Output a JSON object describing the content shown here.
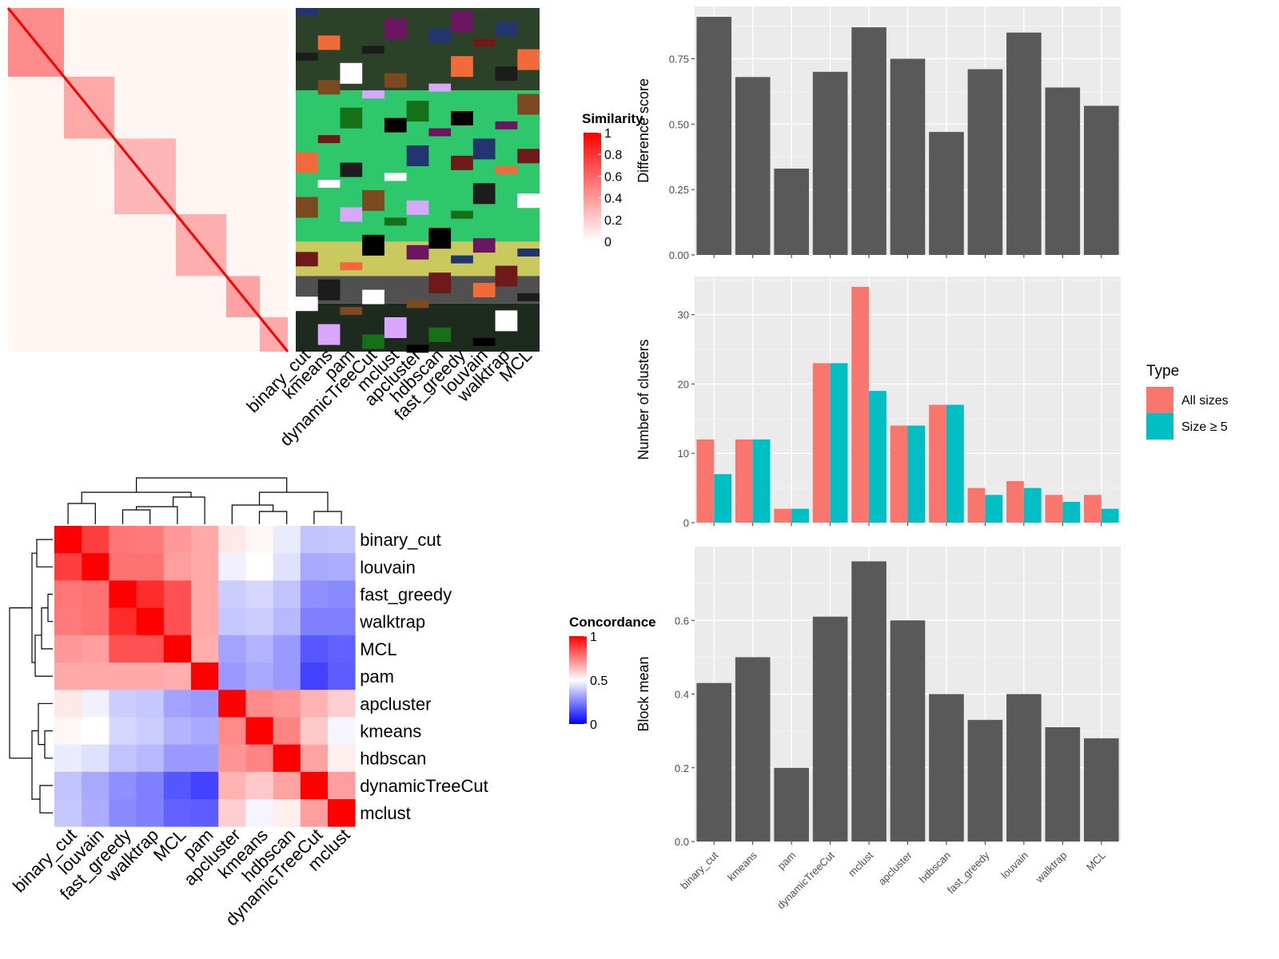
{
  "chart_data": [
    {
      "type": "heatmap",
      "name": "similarity-matrix",
      "legend_title": "Similarity",
      "legend_ticks": [
        "1",
        "0.8",
        "0.6",
        "0.4",
        "0.2",
        "0"
      ],
      "colors": {
        "low": "#ffffff",
        "high": "#ff0000"
      },
      "column_labels": [
        "binary_cut",
        "kmeans",
        "pam",
        "dynamicTreeCut",
        "mclust",
        "apcluster",
        "hdbscan",
        "fast_greedy",
        "louvain",
        "walktrap",
        "MCL"
      ]
    },
    {
      "type": "heatmap",
      "name": "concordance-matrix",
      "legend_title": "Concordance",
      "legend_ticks": [
        "1",
        "0.5",
        "0"
      ],
      "colors": {
        "low": "#0000ff",
        "mid": "#ffffff",
        "high": "#ff0000"
      },
      "labels": [
        "binary_cut",
        "louvain",
        "fast_greedy",
        "walktrap",
        "MCL",
        "pam",
        "apcluster",
        "kmeans",
        "hdbscan",
        "dynamicTreeCut",
        "mclust"
      ],
      "values": [
        [
          1.0,
          0.86,
          0.74,
          0.73,
          0.67,
          0.64,
          0.53,
          0.51,
          0.46,
          0.38,
          0.39
        ],
        [
          0.86,
          1.0,
          0.75,
          0.75,
          0.66,
          0.64,
          0.47,
          0.5,
          0.44,
          0.33,
          0.34
        ],
        [
          0.74,
          0.75,
          1.0,
          0.9,
          0.82,
          0.64,
          0.4,
          0.42,
          0.38,
          0.28,
          0.27
        ],
        [
          0.73,
          0.75,
          0.9,
          1.0,
          0.82,
          0.64,
          0.39,
          0.4,
          0.36,
          0.25,
          0.25
        ],
        [
          0.67,
          0.66,
          0.82,
          0.82,
          1.0,
          0.63,
          0.32,
          0.35,
          0.3,
          0.17,
          0.19
        ],
        [
          0.64,
          0.64,
          0.64,
          0.64,
          0.63,
          1.0,
          0.3,
          0.33,
          0.3,
          0.13,
          0.18
        ],
        [
          0.53,
          0.47,
          0.4,
          0.39,
          0.32,
          0.3,
          1.0,
          0.7,
          0.68,
          0.62,
          0.57
        ],
        [
          0.51,
          0.5,
          0.42,
          0.4,
          0.35,
          0.33,
          0.7,
          1.0,
          0.71,
          0.58,
          0.48
        ],
        [
          0.46,
          0.44,
          0.38,
          0.36,
          0.3,
          0.3,
          0.68,
          0.71,
          1.0,
          0.65,
          0.52
        ],
        [
          0.38,
          0.33,
          0.28,
          0.25,
          0.17,
          0.13,
          0.62,
          0.58,
          0.65,
          1.0,
          0.66
        ],
        [
          0.39,
          0.34,
          0.27,
          0.25,
          0.19,
          0.18,
          0.57,
          0.48,
          0.52,
          0.66,
          1.0
        ]
      ]
    },
    {
      "type": "bar",
      "name": "difference-score",
      "categories": [
        "binary_cut",
        "kmeans",
        "pam",
        "dynamicTreeCut",
        "mclust",
        "apcluster",
        "hdbscan",
        "fast_greedy",
        "louvain",
        "walktrap",
        "MCL"
      ],
      "values": [
        0.91,
        0.68,
        0.33,
        0.7,
        0.87,
        0.75,
        0.47,
        0.71,
        0.85,
        0.64,
        0.57
      ],
      "ylabel": "Difference score",
      "ylim": [
        0,
        0.95
      ],
      "yticks": [
        0.0,
        0.25,
        0.5,
        0.75
      ],
      "ytick_labels": [
        "0.00",
        "0.25",
        "0.50",
        "0.75"
      ],
      "grid": true,
      "bar_color": "#595959"
    },
    {
      "type": "bar",
      "name": "number-of-clusters",
      "categories": [
        "binary_cut",
        "kmeans",
        "pam",
        "dynamicTreeCut",
        "mclust",
        "apcluster",
        "hdbscan",
        "fast_greedy",
        "louvain",
        "walktrap",
        "MCL"
      ],
      "series": [
        {
          "name": "All sizes",
          "values": [
            12,
            12,
            2,
            23,
            34,
            14,
            17,
            5,
            6,
            4,
            4
          ],
          "color": "#f8766d"
        },
        {
          "name": "Size ≥ 5",
          "values": [
            7,
            12,
            2,
            23,
            19,
            14,
            17,
            4,
            5,
            3,
            2
          ],
          "color": "#00bfc4"
        }
      ],
      "ylabel": "Number of clusters",
      "ylim": [
        0,
        35.5
      ],
      "yticks": [
        0,
        10,
        20,
        30
      ],
      "ytick_labels": [
        "0",
        "10",
        "20",
        "30"
      ],
      "legend_title": "Type",
      "legend_position": "right",
      "grid": true
    },
    {
      "type": "bar",
      "name": "block-mean",
      "categories": [
        "binary_cut",
        "kmeans",
        "pam",
        "dynamicTreeCut",
        "mclust",
        "apcluster",
        "hdbscan",
        "fast_greedy",
        "louvain",
        "walktrap",
        "MCL"
      ],
      "values": [
        0.43,
        0.5,
        0.2,
        0.61,
        0.76,
        0.6,
        0.4,
        0.33,
        0.4,
        0.31,
        0.28
      ],
      "ylabel": "Block mean",
      "ylim": [
        0,
        0.8
      ],
      "yticks": [
        0.0,
        0.2,
        0.4,
        0.6
      ],
      "ytick_labels": [
        "0.0",
        "0.2",
        "0.4",
        "0.6"
      ],
      "grid": true,
      "bar_color": "#595959"
    }
  ]
}
